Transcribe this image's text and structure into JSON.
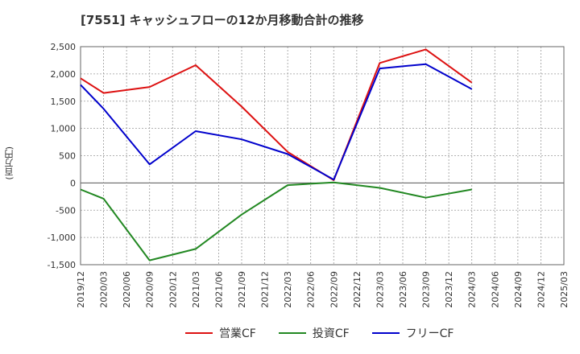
{
  "chart_data": {
    "type": "line",
    "title": "[7551]  キャッシュフローの12か月移動合計の推移",
    "ylabel": "(百万円)",
    "xlabel": "",
    "ylim": [
      -1500,
      2500
    ],
    "yticks": [
      2500,
      2000,
      1500,
      1000,
      500,
      0,
      -500,
      -1000,
      -1500
    ],
    "ytick_labels": [
      "2,500",
      "2,000",
      "1,500",
      "1,000",
      "500",
      "0",
      "-500",
      "-1,000",
      "-1,500"
    ],
    "categories": [
      "2019/12",
      "2020/03",
      "2020/06",
      "2020/09",
      "2020/12",
      "2021/03",
      "2021/06",
      "2021/09",
      "2021/12",
      "2022/03",
      "2022/06",
      "2022/09",
      "2022/12",
      "2023/03",
      "2023/06",
      "2023/09",
      "2023/12",
      "2024/03",
      "2024/06",
      "2024/09",
      "2024/12",
      "2025/03"
    ],
    "grid": true,
    "legend_position": "bottom",
    "series": [
      {
        "name": "営業CF",
        "color": "#dd1111",
        "values": [
          1920,
          1650,
          null,
          1760,
          null,
          2160,
          null,
          1400,
          null,
          570,
          null,
          50,
          null,
          2200,
          null,
          2450,
          null,
          1840,
          null,
          null,
          null,
          null
        ]
      },
      {
        "name": "投資CF",
        "color": "#228822",
        "values": [
          -120,
          -290,
          null,
          -1420,
          null,
          -1210,
          null,
          -580,
          null,
          -40,
          null,
          10,
          null,
          -90,
          null,
          -270,
          null,
          -120,
          null,
          null,
          null,
          null
        ]
      },
      {
        "name": "フリーCF",
        "color": "#0000cc",
        "values": [
          1800,
          1360,
          null,
          340,
          null,
          950,
          null,
          800,
          null,
          530,
          null,
          60,
          null,
          2100,
          null,
          2180,
          null,
          1720,
          null,
          null,
          null,
          null
        ]
      }
    ]
  }
}
